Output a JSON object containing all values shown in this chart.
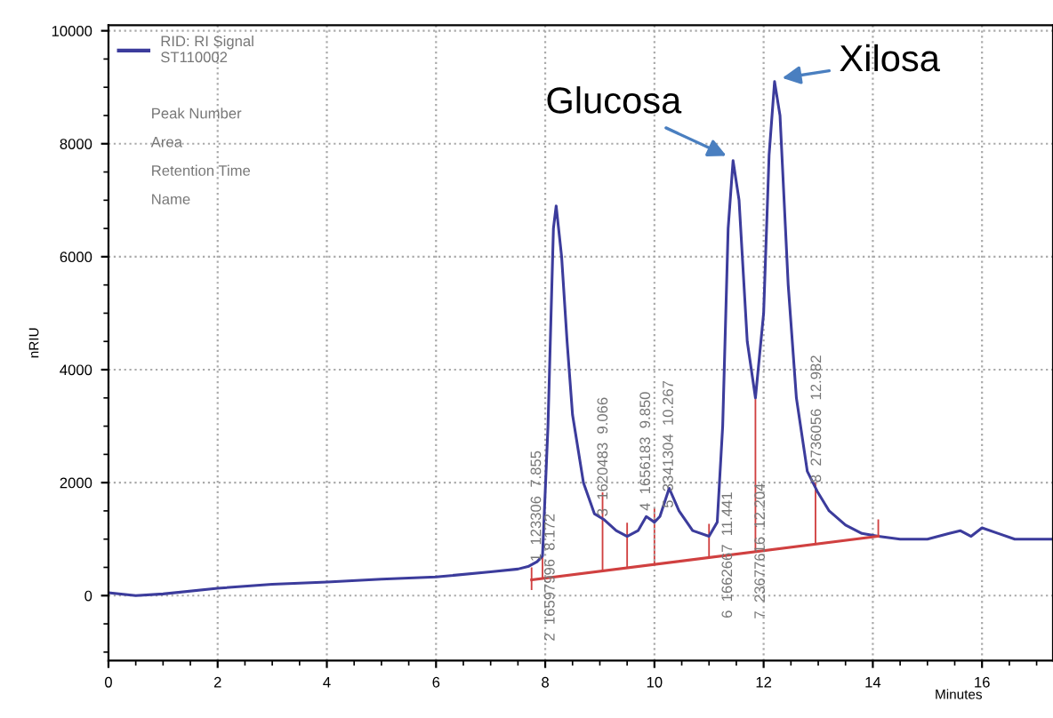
{
  "chart_data": {
    "type": "line",
    "xlabel": "Minutes",
    "ylabel": "nRIU",
    "xlim": [
      0,
      17.3
    ],
    "ylim": [
      -1150,
      10100
    ],
    "xticks": [
      0,
      2,
      4,
      6,
      8,
      10,
      12,
      14,
      16
    ],
    "yticks": [
      0,
      2000,
      4000,
      6000,
      8000,
      10000
    ],
    "grid": true,
    "legend": "top left",
    "marker": "none",
    "line_style": "solid",
    "series": [
      {
        "name": "RID: RI Signal\nST110002",
        "color": "#3c3c9c",
        "x": [
          0,
          0.5,
          1,
          2,
          3,
          4,
          5,
          6,
          7,
          7.5,
          7.7,
          7.85,
          7.95,
          8.05,
          8.15,
          8.2,
          8.3,
          8.4,
          8.5,
          8.7,
          8.9,
          9.07,
          9.3,
          9.5,
          9.7,
          9.85,
          10.0,
          10.1,
          10.27,
          10.45,
          10.7,
          11.0,
          11.15,
          11.25,
          11.35,
          11.44,
          11.55,
          11.7,
          11.85,
          12.0,
          12.1,
          12.2,
          12.3,
          12.45,
          12.6,
          12.8,
          12.98,
          13.2,
          13.5,
          13.8,
          14.1,
          14.5,
          15.0,
          15.4,
          15.6,
          15.8,
          16.0,
          16.3,
          16.6,
          17.3
        ],
        "values": [
          50,
          0,
          30,
          130,
          200,
          240,
          290,
          330,
          420,
          470,
          520,
          600,
          700,
          3000,
          6500,
          6900,
          6000,
          4500,
          3200,
          2000,
          1450,
          1350,
          1150,
          1050,
          1150,
          1400,
          1300,
          1400,
          1900,
          1500,
          1150,
          1050,
          1300,
          3000,
          6500,
          7700,
          7000,
          4500,
          3500,
          5000,
          7800,
          9100,
          8500,
          5500,
          3500,
          2200,
          1850,
          1500,
          1250,
          1100,
          1050,
          1000,
          1000,
          1100,
          1150,
          1050,
          1200,
          1100,
          1000,
          1000
        ]
      },
      {
        "color": "#d04040",
        "type": "line",
        "x": [
          7.75,
          14.1
        ],
        "values": [
          280,
          1050
        ]
      },
      {
        "color": "#d04040",
        "type": "bar",
        "x": [
          7.75,
          7.95,
          9.05,
          9.5,
          10.0,
          11.0,
          11.85,
          12.95,
          14.1
        ],
        "base": [
          100,
          300,
          430,
          490,
          550,
          670,
          780,
          910,
          1050
        ],
        "values": [
          400,
          400,
          1400,
          800,
          1000,
          600,
          2700,
          1100,
          300
        ]
      }
    ],
    "annotations": [
      {
        "text": "Glucosa",
        "x": 11.4,
        "y": 7750
      },
      {
        "text": "Xilosa",
        "x": 12.25,
        "y": 9150
      },
      {
        "text": "1  123306  7.855",
        "x": 7.85,
        "y": 600
      },
      {
        "text": "2  16597996  8.172",
        "x": 8.1,
        "y": 322
      },
      {
        "text": "3  1620483  9.066",
        "x": 9.07,
        "y": 1400
      },
      {
        "text": "4  1656183  9.850",
        "x": 9.85,
        "y": 1500
      },
      {
        "text": "5  3341304  10.267",
        "x": 10.27,
        "y": 1550
      },
      {
        "text": "6  1662667  11.441",
        "x": 11.35,
        "y": 717
      },
      {
        "text": "7  23677616  12.204",
        "x": 11.95,
        "y": 789
      },
      {
        "text": "8  2736056  12.982",
        "x": 12.98,
        "y": 2000
      },
      "Peak Number",
      "Area",
      "Retention Time",
      "Name"
    ]
  }
}
